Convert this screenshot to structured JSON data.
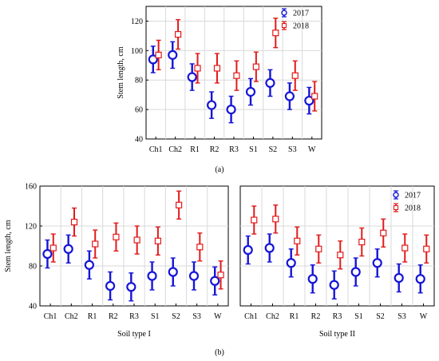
{
  "figure": {
    "panel_a_caption": "(a)",
    "panel_b_caption": "(b)"
  },
  "colors": {
    "s2017": "#1515d6",
    "s2018": "#e21a1a",
    "grid": "#d9d9d9"
  },
  "chart_data": [
    {
      "id": "a",
      "type": "scatter",
      "title": "",
      "xlabel": "",
      "ylabel": "Stem length, cm",
      "ylim": [
        40,
        130
      ],
      "yticks": [
        40,
        60,
        80,
        100,
        120
      ],
      "grid": true,
      "legend": "top-right",
      "categories": [
        "Ch1",
        "Ch2",
        "R1",
        "R2",
        "R3",
        "S1",
        "S2",
        "S3",
        "W"
      ],
      "series": [
        {
          "name": "2017",
          "marker": "circle",
          "values": [
            94,
            97,
            82,
            63,
            60,
            72,
            78,
            69,
            66
          ],
          "err": [
            9,
            9,
            9,
            9,
            9,
            9,
            9,
            9,
            9
          ]
        },
        {
          "name": "2018",
          "marker": "square",
          "values": [
            97,
            111,
            88,
            88,
            83,
            89,
            112,
            83,
            69
          ],
          "err": [
            10,
            10,
            10,
            10,
            10,
            10,
            10,
            10,
            10
          ]
        }
      ]
    },
    {
      "id": "b1",
      "type": "scatter",
      "title": "",
      "xlabel": "Soil type I",
      "ylabel": "Stem length, cm",
      "ylim": [
        40,
        160
      ],
      "yticks": [
        40,
        80,
        120,
        160
      ],
      "grid": true,
      "legend": "",
      "categories": [
        "Ch1",
        "Ch2",
        "R1",
        "R2",
        "R3",
        "S1",
        "S2",
        "S3",
        "W"
      ],
      "series": [
        {
          "name": "2017",
          "marker": "circle",
          "values": [
            92,
            97,
            81,
            60,
            59,
            70,
            74,
            70,
            65
          ],
          "err": [
            14,
            14,
            14,
            14,
            14,
            14,
            14,
            14,
            14
          ]
        },
        {
          "name": "2018",
          "marker": "square",
          "values": [
            98,
            124,
            102,
            109,
            106,
            105,
            141,
            99,
            71
          ],
          "err": [
            14,
            14,
            14,
            14,
            14,
            14,
            14,
            14,
            14
          ]
        }
      ]
    },
    {
      "id": "b2",
      "type": "scatter",
      "title": "",
      "xlabel": "Soil type II",
      "ylabel": "",
      "ylim": [
        40,
        160
      ],
      "yticks": [],
      "grid": true,
      "legend": "top-right",
      "categories": [
        "Ch1",
        "Ch2",
        "R1",
        "R2",
        "R3",
        "S1",
        "S2",
        "S3",
        "W"
      ],
      "series": [
        {
          "name": "2017",
          "marker": "circle",
          "values": [
            96,
            98,
            83,
            67,
            61,
            74,
            83,
            68,
            67
          ],
          "err": [
            14,
            14,
            14,
            14,
            14,
            14,
            14,
            14,
            14
          ]
        },
        {
          "name": "2018",
          "marker": "square",
          "values": [
            126,
            127,
            105,
            97,
            91,
            104,
            113,
            98,
            97
          ],
          "err": [
            14,
            14,
            14,
            14,
            14,
            14,
            14,
            14,
            14
          ]
        }
      ]
    }
  ]
}
